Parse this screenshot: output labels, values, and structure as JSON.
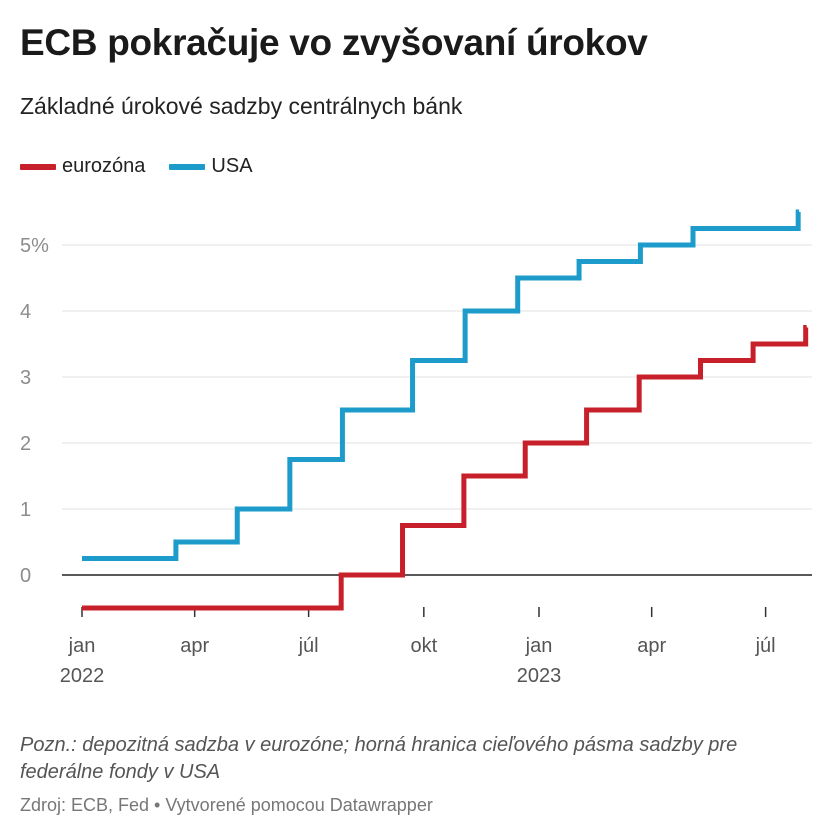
{
  "title": "ECB pokračuje vo zvyšovaní úrokov",
  "subtitle": "Základné úrokové sadzby centrálnych bánk",
  "note": "Pozn.: depozitná sadzba v eurozóne; horná hranica cieľového pásma sadzby pre federálne fondy v USA",
  "source": "Zdroj: ECB, Fed • Vytvorené pomocou Datawrapper",
  "colors": {
    "eurozone": "#c8202a",
    "usa": "#1d9ccb"
  },
  "chart_data": {
    "type": "line",
    "step": true,
    "ylim": [
      -0.75,
      5.5
    ],
    "y_ticks": [
      {
        "value": 0,
        "label": "0"
      },
      {
        "value": 1,
        "label": "1"
      },
      {
        "value": 2,
        "label": "2"
      },
      {
        "value": 3,
        "label": "3"
      },
      {
        "value": 4,
        "label": "4"
      },
      {
        "value": 5,
        "label": "5%"
      }
    ],
    "x_range": [
      "2022-01-01",
      "2023-08-01"
    ],
    "x_ticks": [
      {
        "date": "2022-01-01",
        "label": "jan",
        "year": "2022"
      },
      {
        "date": "2022-04-01",
        "label": "apr"
      },
      {
        "date": "2022-07-01",
        "label": "júl"
      },
      {
        "date": "2022-10-01",
        "label": "okt"
      },
      {
        "date": "2023-01-01",
        "label": "jan",
        "year": "2023"
      },
      {
        "date": "2023-04-01",
        "label": "apr"
      },
      {
        "date": "2023-07-01",
        "label": "júl"
      }
    ],
    "series": [
      {
        "name": "eurozóna",
        "color": "#c8202a",
        "points": [
          [
            "2022-01-01",
            -0.5
          ],
          [
            "2022-07-27",
            0.0
          ],
          [
            "2022-09-14",
            0.75
          ],
          [
            "2022-11-02",
            1.5
          ],
          [
            "2022-12-21",
            2.0
          ],
          [
            "2023-02-08",
            2.5
          ],
          [
            "2023-03-22",
            3.0
          ],
          [
            "2023-05-10",
            3.25
          ],
          [
            "2023-06-21",
            3.5
          ],
          [
            "2023-08-02",
            3.75
          ]
        ]
      },
      {
        "name": "USA",
        "color": "#1d9ccb",
        "points": [
          [
            "2022-01-01",
            0.25
          ],
          [
            "2022-03-17",
            0.5
          ],
          [
            "2022-05-05",
            1.0
          ],
          [
            "2022-06-16",
            1.75
          ],
          [
            "2022-07-28",
            2.5
          ],
          [
            "2022-09-22",
            3.25
          ],
          [
            "2022-11-03",
            4.0
          ],
          [
            "2022-12-15",
            4.5
          ],
          [
            "2023-02-02",
            4.75
          ],
          [
            "2023-03-23",
            5.0
          ],
          [
            "2023-05-04",
            5.25
          ],
          [
            "2023-07-27",
            5.5
          ]
        ]
      }
    ]
  }
}
